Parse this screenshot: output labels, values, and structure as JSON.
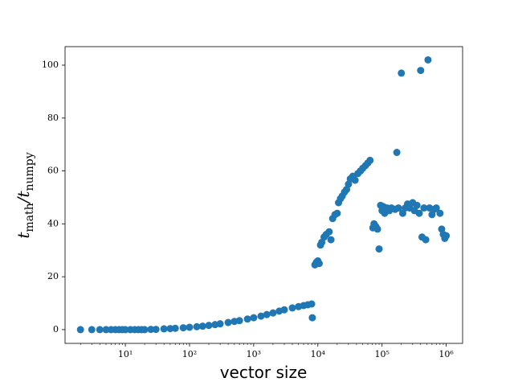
{
  "chart_data": {
    "type": "scatter",
    "xlabel": "vector size",
    "ylabel": [
      "t",
      "math",
      "/t",
      "numpy"
    ],
    "xscale": "log",
    "color": "#1f77b4",
    "xlim": [
      1.15,
      1800000
    ],
    "ylim": [
      -5.2,
      107
    ],
    "xticks": [
      {
        "value": 10,
        "label": "10¹"
      },
      {
        "value": 100,
        "label": "10²"
      },
      {
        "value": 1000,
        "label": "10³"
      },
      {
        "value": 10000,
        "label": "10⁴"
      },
      {
        "value": 100000,
        "label": "10⁵"
      },
      {
        "value": 1000000,
        "label": "10⁶"
      }
    ],
    "yticks": [
      0,
      20,
      40,
      60,
      80,
      100
    ],
    "x": [
      2,
      3,
      4,
      5,
      6,
      7,
      8,
      9,
      10,
      12,
      14,
      16,
      18,
      20,
      25,
      30,
      40,
      50,
      60,
      80,
      100,
      130,
      160,
      200,
      250,
      300,
      400,
      500,
      600,
      800,
      1000,
      1300,
      1600,
      2000,
      2500,
      3000,
      4000,
      5000,
      6000,
      7000,
      8000,
      8200,
      9000,
      9500,
      10000,
      10500,
      11000,
      11500,
      12500,
      13500,
      15000,
      16000,
      17000,
      18500,
      20000,
      21000,
      22500,
      24000,
      26000,
      28000,
      30000,
      32000,
      35000,
      38000,
      42000,
      46000,
      50000,
      55000,
      60000,
      65000,
      72000,
      75000,
      80000,
      85000,
      90000,
      95000,
      100000,
      105000,
      110000,
      120000,
      130000,
      140000,
      160000,
      170000,
      180000,
      200000,
      210000,
      230000,
      250000,
      270000,
      300000,
      320000,
      350000,
      380000,
      400000,
      420000,
      450000,
      480000,
      520000,
      550000,
      600000,
      650000,
      700000,
      800000,
      850000,
      900000,
      950000,
      1000000
    ],
    "values": [
      0,
      0,
      0,
      0,
      0,
      0,
      0,
      0,
      0,
      0,
      0,
      0,
      0,
      0,
      0.1,
      0.1,
      0.3,
      0.4,
      0.5,
      0.7,
      0.9,
      1.1,
      1.3,
      1.6,
      1.9,
      2.2,
      2.7,
      3.1,
      3.4,
      4.0,
      4.5,
      5.1,
      5.7,
      6.3,
      7.0,
      7.5,
      8.2,
      8.7,
      9.1,
      9.4,
      9.7,
      4.5,
      24.5,
      25.5,
      26,
      25,
      32,
      33,
      35,
      36,
      37,
      34,
      42,
      43.5,
      44,
      48,
      49.5,
      50.5,
      52,
      53,
      55,
      57,
      58,
      56.5,
      59,
      60,
      61,
      62,
      63,
      64,
      38.5,
      40,
      39,
      38,
      30.5,
      47,
      45,
      46.5,
      44,
      46,
      45,
      46,
      45.5,
      67,
      46,
      97,
      44,
      46,
      47.5,
      46,
      48,
      45,
      47,
      44,
      98,
      35,
      46,
      34,
      102,
      46,
      43.5,
      45.5,
      46,
      44,
      38,
      36,
      34.5,
      35.5
    ]
  }
}
